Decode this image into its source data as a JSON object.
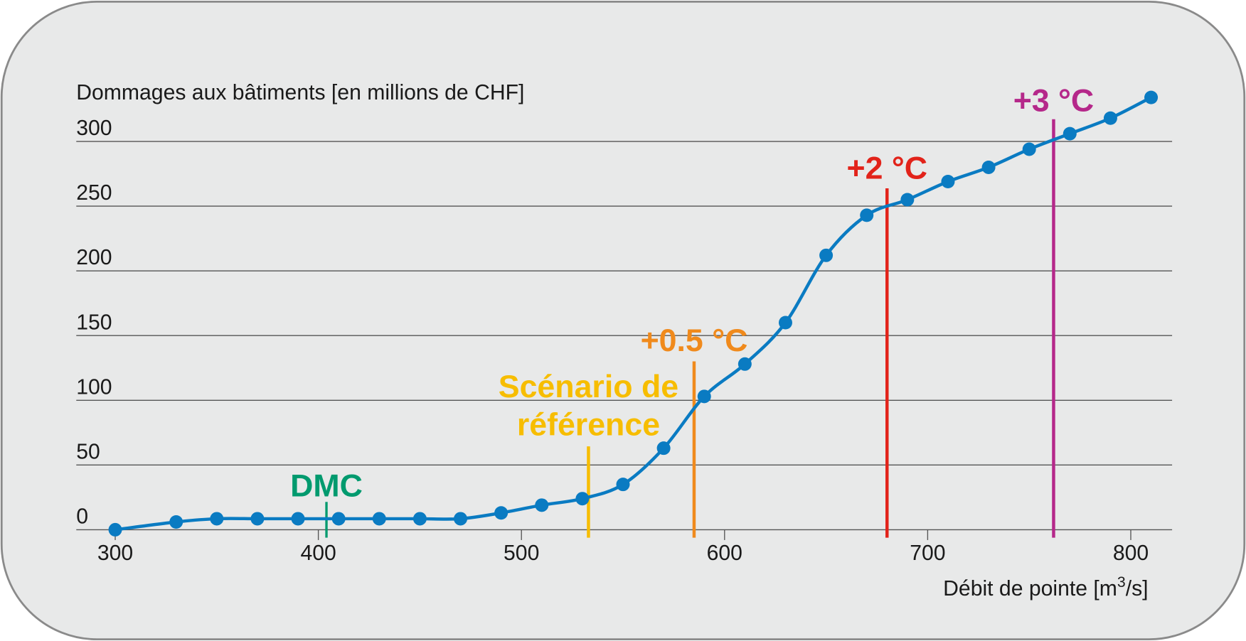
{
  "chart_data": {
    "type": "line",
    "title": "",
    "ylabel": "Dommages aux bâtiments [en millions de CHF]",
    "xlabel_prefix": "Débit de pointe [m",
    "xlabel_sup": "3",
    "xlabel_suffix": "/s]",
    "xlim": [
      300,
      820
    ],
    "ylim": [
      0,
      300
    ],
    "x_ticks": [
      300,
      400,
      500,
      600,
      700,
      800
    ],
    "y_ticks": [
      0,
      50,
      100,
      150,
      200,
      250,
      300
    ],
    "grid": "horizontal",
    "series": [
      {
        "name": "Dommages",
        "color": "#0a7bc2",
        "x": [
          300,
          330,
          350,
          370,
          390,
          410,
          430,
          450,
          470,
          490,
          510,
          530,
          550,
          570,
          590,
          610,
          630,
          650,
          670,
          690,
          710,
          730,
          750,
          770,
          790,
          810
        ],
        "y": [
          0,
          6,
          8.5,
          8.5,
          8.5,
          8.5,
          8.5,
          8.5,
          8.5,
          13,
          19,
          24,
          35,
          63,
          103,
          128,
          160,
          212,
          243,
          255,
          269,
          280,
          294,
          306,
          318,
          334
        ]
      }
    ],
    "markers": [
      {
        "label": "DMC",
        "x": 404,
        "color": "#009a6e"
      },
      {
        "label_lines": [
          "Scénario de",
          "référence"
        ],
        "x": 533,
        "color": "#f7bd00"
      },
      {
        "label": "+0.5 °C",
        "x": 585,
        "color": "#f08a1c"
      },
      {
        "label": "+2 °C",
        "x": 680,
        "color": "#e2231a"
      },
      {
        "label": "+3 °C",
        "x": 762,
        "color": "#b5288a"
      }
    ]
  }
}
